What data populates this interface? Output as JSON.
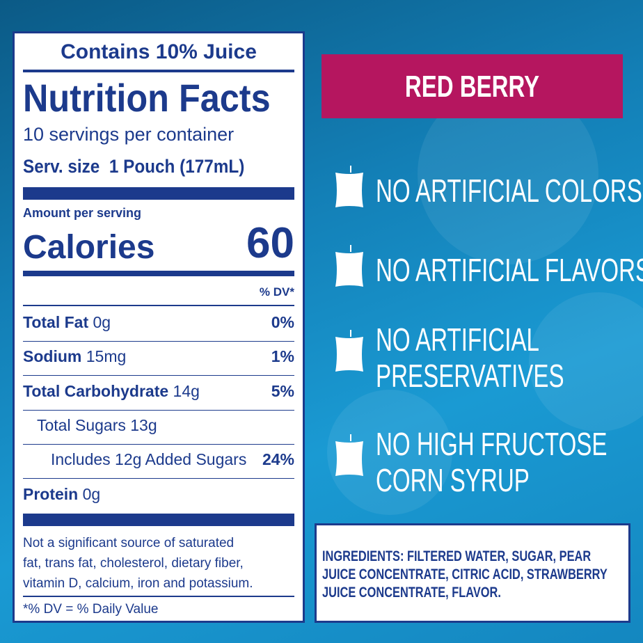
{
  "label": {
    "juice": "Contains 10% Juice",
    "title": "Nutrition Facts",
    "servings": "10 servings per container",
    "serv_size_label": "Serv. size",
    "serv_size_value": "1 Pouch (177mL)",
    "amount_per_serving": "Amount per serving",
    "calories_label": "Calories",
    "calories_value": "60",
    "dv_header": "% DV*",
    "rows": [
      {
        "name": "Total Fat",
        "amount": "0g",
        "dv": "0%"
      },
      {
        "name": "Sodium",
        "amount": "15mg",
        "dv": "1%"
      },
      {
        "name": "Total Carbohydrate",
        "amount": "14g",
        "dv": "5%"
      },
      {
        "name": "Total Sugars",
        "amount": "13g"
      },
      {
        "name": "Includes 12g Added Sugars",
        "dv": "24%"
      },
      {
        "name": "Protein",
        "amount": "0g"
      }
    ],
    "footnote": [
      "Not a significant source of saturated",
      "fat, trans fat, cholesterol, dietary fiber,",
      "vitamin D, calcium, iron and potassium."
    ],
    "dv_note": "*% DV = % Daily Value"
  },
  "flavor": "RED BERRY",
  "claims": [
    [
      "NO ARTIFICIAL COLORS"
    ],
    [
      "NO ARTIFICIAL FLAVORS"
    ],
    [
      "NO ARTIFICIAL",
      "PRESERVATIVES"
    ],
    [
      "NO HIGH FRUCTOSE",
      "CORN SYRUP"
    ]
  ],
  "ingredients": {
    "label": "INGREDIENTS:",
    "text": "FILTERED WATER, SUGAR, PEAR JUICE CONCENTRATE, CITRIC ACID, STRAWBERRY JUICE CONCENTRATE, FLAVOR."
  }
}
